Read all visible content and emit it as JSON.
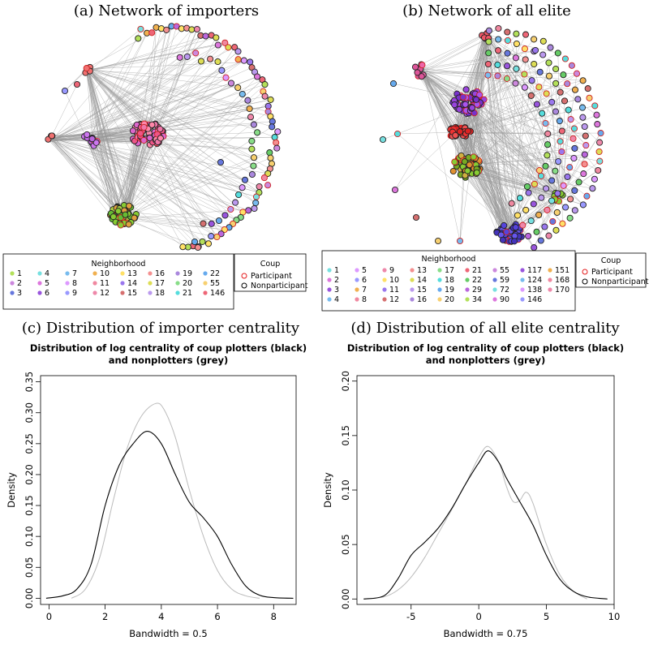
{
  "panels": [
    {
      "caption": "(a) Network of importers",
      "legend": {
        "title": "Neighborhood",
        "columns": [
          [
            "1",
            "2",
            "3"
          ],
          [
            "4",
            "5",
            "6"
          ],
          [
            "7",
            "8",
            "9"
          ],
          [
            "10",
            "11",
            "12"
          ],
          [
            "13",
            "14",
            "15"
          ],
          [
            "16",
            "17",
            "18"
          ],
          [
            "19",
            "20",
            "21"
          ],
          [
            "22",
            "55",
            "146"
          ]
        ]
      },
      "coup_legend": {
        "title": "Coup",
        "items": [
          "Participant",
          "Nonparticipant"
        ]
      }
    },
    {
      "caption": "(b) Network of all elite",
      "legend": {
        "title": "Neighborhood",
        "columns": [
          [
            "1",
            "2",
            "3",
            "4"
          ],
          [
            "5",
            "6",
            "7",
            "8"
          ],
          [
            "9",
            "10",
            "11",
            "12"
          ],
          [
            "13",
            "14",
            "15",
            "16"
          ],
          [
            "17",
            "18",
            "19",
            "20"
          ],
          [
            "21",
            "22",
            "29",
            "34"
          ],
          [
            "55",
            "59",
            "72",
            "90"
          ],
          [
            "117",
            "124",
            "138",
            "146"
          ],
          [
            "151",
            "168",
            "170"
          ]
        ]
      },
      "coup_legend": {
        "title": "Coup",
        "items": [
          "Participant",
          "Nonparticipant"
        ]
      }
    }
  ],
  "chart_data": [
    {
      "type": "line",
      "caption": "(c) Distribution of importer centrality",
      "title": [
        "Distribution of log centrality of coup plotters (black)",
        "and nonplotters (grey)"
      ],
      "xlabel": "Bandwidth = 0.5",
      "ylabel": "Density",
      "xlim": [
        -0.3,
        8.8
      ],
      "ylim": [
        -0.01,
        0.36
      ],
      "xticks": [
        0,
        2,
        4,
        6,
        8
      ],
      "yticks": [
        0.0,
        0.05,
        0.1,
        0.15,
        0.2,
        0.25,
        0.3,
        0.35
      ],
      "colors": {
        "plotters": "#000000",
        "nonplotters": "#bbbbbb"
      },
      "series": [
        {
          "x": [
            -0.1,
            0.5,
            1.0,
            1.5,
            2.0,
            2.5,
            3.0,
            3.5,
            4.0,
            4.5,
            5.0,
            5.5,
            6.0,
            6.5,
            7.0,
            7.5,
            8.0,
            8.7
          ],
          "y": [
            0.0,
            0.004,
            0.015,
            0.055,
            0.15,
            0.215,
            0.25,
            0.27,
            0.25,
            0.2,
            0.155,
            0.13,
            0.1,
            0.055,
            0.02,
            0.005,
            0.001,
            0.0
          ]
        },
        {
          "x": [
            0.8,
            1.3,
            1.8,
            2.3,
            2.8,
            3.3,
            3.8,
            4.1,
            4.5,
            5.0,
            5.5,
            6.0,
            6.5,
            7.0,
            7.5
          ],
          "y": [
            0.0,
            0.015,
            0.065,
            0.16,
            0.245,
            0.295,
            0.315,
            0.305,
            0.26,
            0.175,
            0.1,
            0.045,
            0.015,
            0.004,
            0.0
          ]
        }
      ]
    },
    {
      "type": "line",
      "caption": "(d) Distribution of all elite centrality",
      "title": [
        "Distribution of log centrality of coup plotters (black)",
        "and nonplotters (grey)"
      ],
      "xlabel": "Bandwidth = 0.75",
      "ylabel": "Density",
      "xlim": [
        -9,
        10
      ],
      "ylim": [
        -0.005,
        0.205
      ],
      "xticks": [
        -5,
        0,
        5,
        10
      ],
      "yticks": [
        0.0,
        0.05,
        0.1,
        0.15,
        0.2
      ],
      "colors": {
        "plotters": "#000000",
        "nonplotters": "#bbbbbb"
      },
      "series": [
        {
          "x": [
            -8.5,
            -7,
            -6,
            -5,
            -4,
            -3,
            -2,
            -1,
            0,
            0.7,
            1.5,
            2,
            3,
            4,
            5,
            6,
            7,
            8,
            9.5
          ],
          "y": [
            0.0,
            0.003,
            0.018,
            0.04,
            0.052,
            0.065,
            0.083,
            0.105,
            0.125,
            0.136,
            0.125,
            0.112,
            0.09,
            0.068,
            0.04,
            0.018,
            0.007,
            0.002,
            0.0
          ]
        },
        {
          "x": [
            -8.5,
            -7,
            -6,
            -5,
            -4,
            -3,
            -2,
            -1,
            0,
            0.7,
            1.5,
            2,
            2.5,
            3,
            3.5,
            4,
            5,
            6,
            7,
            8
          ],
          "y": [
            0.0,
            0.002,
            0.008,
            0.02,
            0.038,
            0.06,
            0.082,
            0.105,
            0.13,
            0.14,
            0.125,
            0.105,
            0.09,
            0.09,
            0.098,
            0.088,
            0.05,
            0.022,
            0.007,
            0.0
          ]
        }
      ]
    }
  ]
}
